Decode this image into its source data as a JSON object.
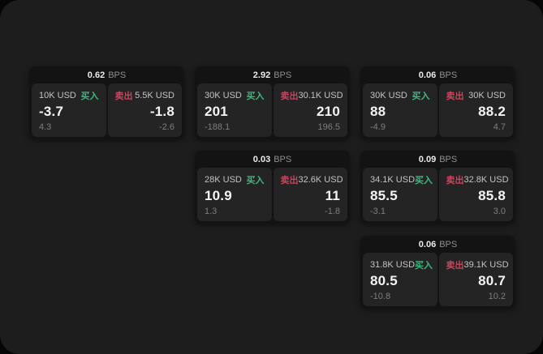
{
  "labels": {
    "bps_unit": "BPS",
    "buy": "买入",
    "sell": "卖出"
  },
  "colors": {
    "page_bg": "#1d1d1e",
    "card_bg": "#131313",
    "panel_bg": "#242425",
    "buy_accent": "#3cba7c",
    "sell_accent": "#c8455c"
  },
  "cards": [
    {
      "bps": "0.62",
      "buy": {
        "amount": "10K USD",
        "price": "-3.7",
        "delta": "4.3"
      },
      "sell": {
        "amount": "5.5K USD",
        "price": "-1.8",
        "delta": "-2.6"
      }
    },
    {
      "bps": "2.92",
      "buy": {
        "amount": "30K USD",
        "price": "201",
        "delta": "-188.1"
      },
      "sell": {
        "amount": "30.1K USD",
        "price": "210",
        "delta": "196.5"
      }
    },
    {
      "bps": "0.06",
      "buy": {
        "amount": "30K USD",
        "price": "88",
        "delta": "-4.9"
      },
      "sell": {
        "amount": "30K USD",
        "price": "88.2",
        "delta": "4.7"
      }
    },
    {
      "bps": "0.03",
      "buy": {
        "amount": "28K USD",
        "price": "10.9",
        "delta": "1.3"
      },
      "sell": {
        "amount": "32.6K USD",
        "price": "11",
        "delta": "-1.8"
      }
    },
    {
      "bps": "0.09",
      "buy": {
        "amount": "34.1K USD",
        "price": "85.5",
        "delta": "-3.1"
      },
      "sell": {
        "amount": "32.8K USD",
        "price": "85.8",
        "delta": "3.0"
      }
    },
    {
      "bps": "0.06",
      "buy": {
        "amount": "31.8K USD",
        "price": "80.5",
        "delta": "-10.8"
      },
      "sell": {
        "amount": "39.1K USD",
        "price": "80.7",
        "delta": "10.2"
      }
    }
  ]
}
